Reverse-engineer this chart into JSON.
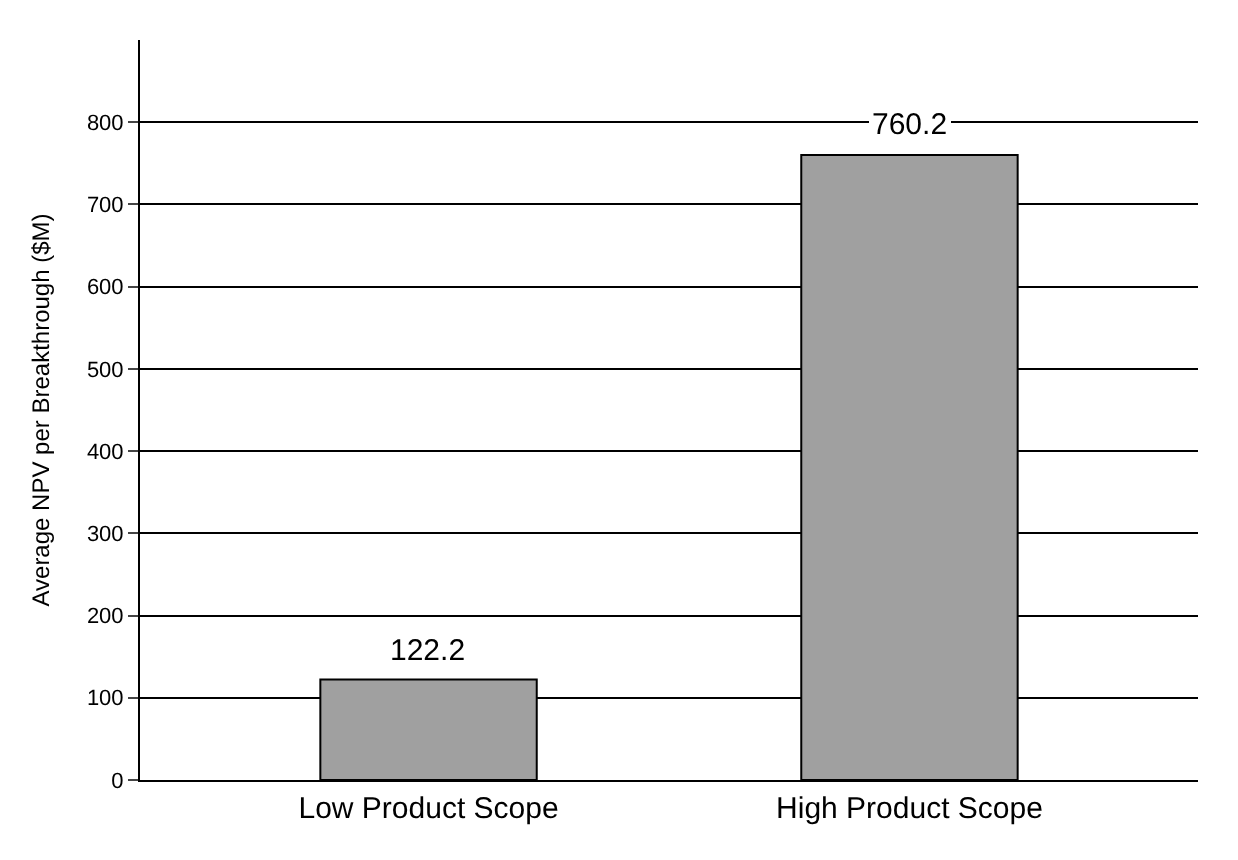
{
  "chart_data": {
    "type": "bar",
    "ylabel": "Average NPV per Breakthrough ($M)",
    "categories": [
      "Low Product Scope",
      "High Product Scope"
    ],
    "values": [
      122.2,
      760.2
    ],
    "color": "#a0a0a0",
    "data_labels": true,
    "ylim": [
      0,
      900
    ],
    "yticks": [
      0,
      100,
      200,
      300,
      400,
      500,
      600,
      700,
      800
    ],
    "grid": "y"
  }
}
